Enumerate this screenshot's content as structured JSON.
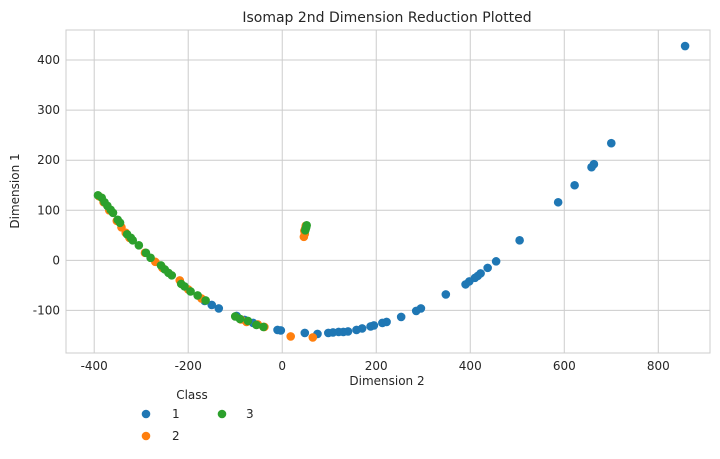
{
  "chart_data": {
    "type": "scatter",
    "title": "Isomap 2nd Dimension Reduction Plotted",
    "xlabel": "Dimension 2",
    "ylabel": "Dimension 1",
    "xlim": [
      -460,
      910
    ],
    "ylim": [
      -185,
      460
    ],
    "xticks": [
      -400,
      -200,
      0,
      200,
      400,
      600,
      800
    ],
    "yticks": [
      -100,
      0,
      100,
      200,
      300,
      400
    ],
    "grid": true,
    "legend": {
      "title": "Class",
      "placement": "below-left",
      "columns": 2
    },
    "series": [
      {
        "name": "1",
        "color": "#1f77b4",
        "points": [
          [
            857,
            428
          ],
          [
            700,
            234
          ],
          [
            663,
            192
          ],
          [
            658,
            186
          ],
          [
            622,
            150
          ],
          [
            587,
            116
          ],
          [
            505,
            40
          ],
          [
            455,
            -2
          ],
          [
            437,
            -15
          ],
          [
            422,
            -26
          ],
          [
            416,
            -31
          ],
          [
            410,
            -35
          ],
          [
            398,
            -42
          ],
          [
            390,
            -48
          ],
          [
            348,
            -68
          ],
          [
            295,
            -96
          ],
          [
            285,
            -101
          ],
          [
            253,
            -113
          ],
          [
            222,
            -123
          ],
          [
            213,
            -125
          ],
          [
            195,
            -130
          ],
          [
            188,
            -132
          ],
          [
            170,
            -136
          ],
          [
            158,
            -139
          ],
          [
            140,
            -142
          ],
          [
            130,
            -143
          ],
          [
            120,
            -143
          ],
          [
            108,
            -144
          ],
          [
            98,
            -145
          ],
          [
            75,
            -147
          ],
          [
            48,
            -145
          ],
          [
            -3,
            -140
          ],
          [
            -10,
            -139
          ],
          [
            -62,
            -125
          ],
          [
            -80,
            -119
          ],
          [
            -97,
            -111
          ],
          [
            -135,
            -96
          ],
          [
            -150,
            -89
          ],
          [
            -165,
            -81
          ]
        ]
      },
      {
        "name": "2",
        "color": "#ff7f0e",
        "points": [
          [
            50,
            69
          ],
          [
            49,
            64
          ],
          [
            47,
            59
          ],
          [
            48,
            53
          ],
          [
            46,
            47
          ],
          [
            18,
            -152
          ],
          [
            65,
            -154
          ],
          [
            -38,
            -133
          ],
          [
            -52,
            -128
          ],
          [
            -76,
            -123
          ],
          [
            -88,
            -118
          ],
          [
            -172,
            -76
          ],
          [
            -200,
            -58
          ],
          [
            -218,
            -40
          ],
          [
            -255,
            -15
          ],
          [
            -270,
            -3
          ],
          [
            -292,
            15
          ],
          [
            -325,
            45
          ],
          [
            -333,
            55
          ],
          [
            -342,
            66
          ],
          [
            -352,
            79
          ],
          [
            -368,
            100
          ],
          [
            -380,
            116
          ],
          [
            -390,
            128
          ]
        ]
      },
      {
        "name": "3",
        "color": "#2ca02c",
        "points": [
          [
            52,
            70
          ],
          [
            51,
            66
          ],
          [
            50,
            63
          ],
          [
            49,
            60
          ],
          [
            -40,
            -133
          ],
          [
            -55,
            -129
          ],
          [
            -73,
            -121
          ],
          [
            -90,
            -117
          ],
          [
            -100,
            -112
          ],
          [
            -163,
            -80
          ],
          [
            -180,
            -70
          ],
          [
            -195,
            -62
          ],
          [
            -208,
            -52
          ],
          [
            -215,
            -47
          ],
          [
            -235,
            -30
          ],
          [
            -242,
            -25
          ],
          [
            -250,
            -18
          ],
          [
            -258,
            -10
          ],
          [
            -280,
            5
          ],
          [
            -290,
            15
          ],
          [
            -305,
            30
          ],
          [
            -318,
            40
          ],
          [
            -322,
            45
          ],
          [
            -330,
            52
          ],
          [
            -345,
            75
          ],
          [
            -350,
            81
          ],
          [
            -360,
            95
          ],
          [
            -365,
            101
          ],
          [
            -372,
            109
          ],
          [
            -378,
            116
          ],
          [
            -384,
            125
          ],
          [
            -392,
            130
          ]
        ]
      }
    ]
  }
}
